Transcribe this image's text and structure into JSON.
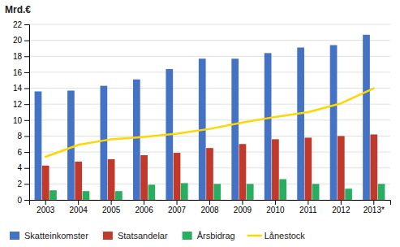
{
  "chart_data": {
    "type": "bar",
    "ylabel": "Mrd.€",
    "categories": [
      "2003",
      "2004",
      "2005",
      "2006",
      "2007",
      "2008",
      "2009",
      "2010",
      "2011",
      "2012",
      "2013*"
    ],
    "series": [
      {
        "name": "Skatteinkomster",
        "type": "bar",
        "color": "#4472C4",
        "values": [
          13.6,
          13.7,
          14.3,
          15.1,
          16.4,
          17.7,
          17.7,
          18.4,
          19.1,
          19.4,
          20.7
        ]
      },
      {
        "name": "Statsandelar",
        "type": "bar",
        "color": "#C0392B",
        "values": [
          4.3,
          4.8,
          5.1,
          5.6,
          5.9,
          6.5,
          7.0,
          7.6,
          7.8,
          8.0,
          8.2
        ]
      },
      {
        "name": "Årsbidrag",
        "type": "bar",
        "color": "#27AE60",
        "values": [
          1.2,
          1.1,
          1.1,
          1.9,
          2.1,
          2.0,
          2.0,
          2.6,
          2.0,
          1.4,
          2.0
        ]
      },
      {
        "name": "Lånestock",
        "type": "line",
        "color": "#FFD700",
        "values": [
          5.4,
          6.9,
          7.6,
          7.9,
          8.3,
          8.9,
          9.7,
          10.4,
          11.0,
          12.1,
          14.0
        ]
      }
    ],
    "ylim": [
      0,
      22
    ],
    "yticks": [
      0,
      2,
      4,
      6,
      8,
      10,
      12,
      14,
      16,
      18,
      20,
      22
    ],
    "grid": true,
    "legend": "bottom"
  }
}
